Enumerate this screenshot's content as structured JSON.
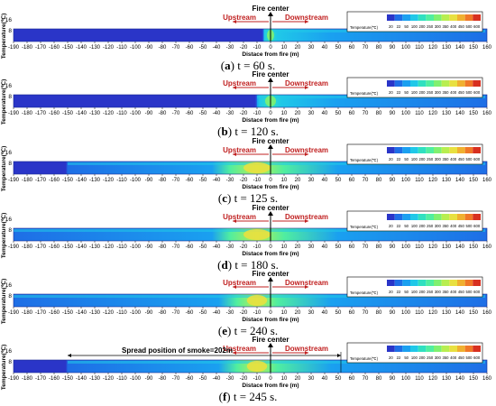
{
  "figure": {
    "x_axis_label": "Distace from fire (m)",
    "y_axis_label": "Temperature(℃)",
    "y_ticks": [
      "16",
      "8"
    ],
    "fire_center_label": "Fire center",
    "upstream_label": "Upstream",
    "downstream_label": "Downstream",
    "legend_title": "Temperature(℃)",
    "legend_ticks": [
      "20",
      "22",
      "50",
      "100",
      "200",
      "250",
      "300",
      "350",
      "400",
      "450",
      "500",
      "600"
    ],
    "legend_colors": [
      "#2a35c8",
      "#1e6ee6",
      "#1aa0f0",
      "#20c8e8",
      "#30e0c0",
      "#50eea0",
      "#80f070",
      "#b8ee50",
      "#e8e040",
      "#f0b030",
      "#f07828",
      "#d83020"
    ],
    "x_ticks": [
      -190,
      -180,
      -170,
      -160,
      -150,
      -140,
      -130,
      -120,
      -110,
      -100,
      -90,
      -80,
      -70,
      -60,
      -50,
      -40,
      -30,
      -20,
      -10,
      0,
      10,
      20,
      30,
      40,
      50,
      60,
      70,
      80,
      90,
      100,
      110,
      120,
      130,
      140,
      150,
      160
    ]
  },
  "chart_data": [
    {
      "type": "heatmap",
      "panel_letter": "a",
      "caption_rest": ") t = 60 s.",
      "xlim": [
        -190,
        160
      ],
      "ylim": [
        0,
        20
      ],
      "smoke_front_m": -5,
      "hot_zone": [
        -5,
        5
      ],
      "peak_level": 0.45,
      "annotation": ""
    },
    {
      "type": "heatmap",
      "panel_letter": "b",
      "caption_rest": ") t = 120 s.",
      "xlim": [
        -190,
        160
      ],
      "ylim": [
        0,
        20
      ],
      "smoke_front_m": -10,
      "hot_zone": [
        -8,
        8
      ],
      "peak_level": 0.5,
      "annotation": ""
    },
    {
      "type": "heatmap",
      "panel_letter": "c",
      "caption_rest": ") t = 125 s.",
      "xlim": [
        -190,
        160
      ],
      "ylim": [
        0,
        20
      ],
      "smoke_front_m": -150,
      "hot_zone": [
        -30,
        10
      ],
      "peak_level": 0.85,
      "annotation": ""
    },
    {
      "type": "heatmap",
      "panel_letter": "d",
      "caption_rest": ") t = 180 s.",
      "xlim": [
        -190,
        160
      ],
      "ylim": [
        0,
        20
      ],
      "smoke_front_m": -190,
      "hot_zone": [
        -30,
        10
      ],
      "peak_level": 0.8,
      "annotation": ""
    },
    {
      "type": "heatmap",
      "panel_letter": "e",
      "caption_rest": ") t = 240 s.",
      "xlim": [
        -190,
        160
      ],
      "ylim": [
        0,
        20
      ],
      "smoke_front_m": -190,
      "hot_zone": [
        -25,
        5
      ],
      "peak_level": 0.8,
      "annotation": ""
    },
    {
      "type": "heatmap",
      "panel_letter": "f",
      "caption_rest": ") t = 245 s.",
      "xlim": [
        -190,
        160
      ],
      "ylim": [
        0,
        20
      ],
      "smoke_front_m": -150,
      "hot_zone": [
        -25,
        5
      ],
      "peak_level": 0.8,
      "annotation": "Spread position of smoke=202m",
      "annotation_span_m": [
        -150,
        52
      ]
    }
  ]
}
